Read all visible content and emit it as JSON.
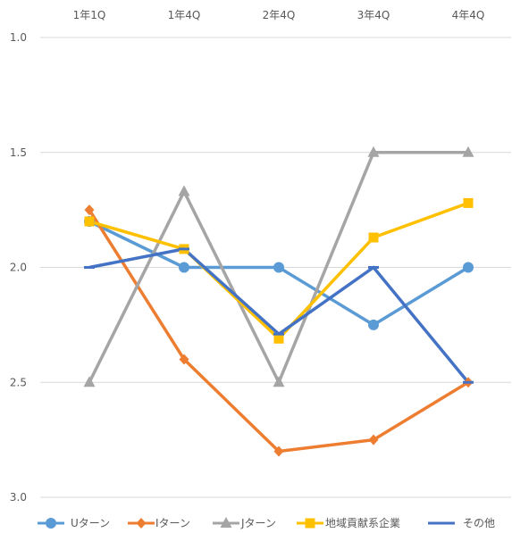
{
  "chart_data": {
    "type": "line",
    "title": "",
    "xlabel": "",
    "ylabel": "",
    "categories": [
      "1年1Q",
      "1年4Q",
      "2年4Q",
      "3年4Q",
      "4年4Q"
    ],
    "y_ticks": [
      "1.0",
      "1.5",
      "2.0",
      "2.5",
      "3.0"
    ],
    "ylim": [
      1.0,
      3.0
    ],
    "y_axis_reversed": true,
    "x_axis_position": "top",
    "grid": true,
    "legend_position": "bottom",
    "series": [
      {
        "name": "Uターン",
        "values": [
          1.8,
          2.0,
          2.0,
          2.25,
          2.0
        ],
        "color": "#5B9BD5",
        "marker": "circle"
      },
      {
        "name": "Iターン",
        "values": [
          1.75,
          2.4,
          2.8,
          2.75,
          2.5
        ],
        "color": "#ED7D31",
        "marker": "diamond"
      },
      {
        "name": "Jターン",
        "values": [
          2.5,
          1.67,
          2.5,
          1.5,
          1.5
        ],
        "color": "#A5A5A5",
        "marker": "triangle"
      },
      {
        "name": "地域貢献系企業",
        "values": [
          1.8,
          1.92,
          2.31,
          1.87,
          1.72
        ],
        "color": "#FFC000",
        "marker": "square"
      },
      {
        "name": "その他",
        "values": [
          2.0,
          1.92,
          2.29,
          2.0,
          2.5
        ],
        "color": "#4472C4",
        "marker": "dash"
      }
    ]
  }
}
